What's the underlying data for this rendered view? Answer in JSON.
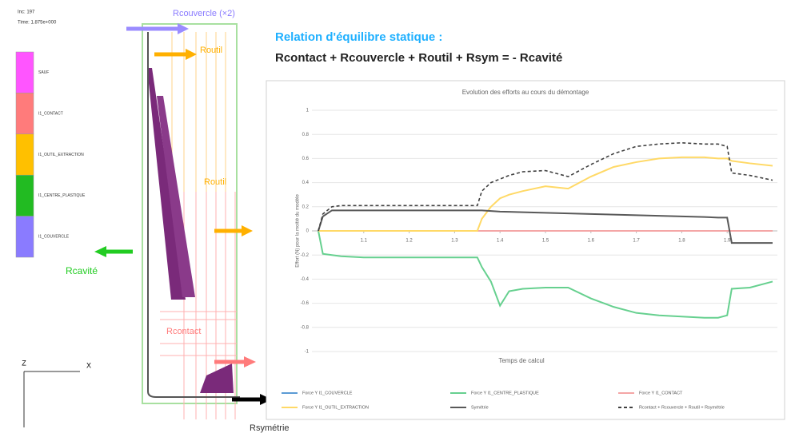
{
  "scene": {
    "info": [
      "Inc: 197",
      "Time: 1.875e+000"
    ],
    "color_legend": [
      {
        "label": "SAUF",
        "color": "#ff55ff"
      },
      {
        "label": "I1_CONTACT",
        "color": "#ff7b7b"
      },
      {
        "label": "I1_OUTIL_EXTRACTION",
        "color": "#ffc000"
      },
      {
        "label": "I1_CENTRE_PLASTIQUE",
        "color": "#22bb22"
      },
      {
        "label": "I1_COUVERCLE",
        "color": "#8a7bff"
      }
    ],
    "labels": {
      "couvercle": "Rcouvercle (×2)",
      "outil_top": "Routil",
      "outil_mid": "Routil",
      "cavite": "Rcavité",
      "contact": "Rcontact",
      "symetrie": "Rsymétrie"
    },
    "axes": {
      "z": "Z",
      "x": "X"
    }
  },
  "equation": {
    "title": "Relation d'équilibre statique :",
    "formula": "Rcontact + Rcouvercle + Routil + Rsym = - Rcavité"
  },
  "chart_data": {
    "type": "line",
    "title": "Evolution des efforts au cours du démontage",
    "xlabel": "Temps de calcul",
    "ylabel": "Effort (N) pour la moitié du modèle",
    "x": [
      1.0,
      1.01,
      1.03,
      1.05,
      1.1,
      1.2,
      1.3,
      1.35,
      1.36,
      1.38,
      1.4,
      1.42,
      1.45,
      1.5,
      1.55,
      1.6,
      1.65,
      1.7,
      1.75,
      1.8,
      1.85,
      1.88,
      1.9,
      1.91,
      1.95,
      2.0
    ],
    "xlim": [
      1,
      2
    ],
    "xticks": [
      1.1,
      1.2,
      1.3,
      1.4,
      1.5,
      1.6,
      1.7,
      1.8,
      1.9
    ],
    "ylim": [
      -1,
      1
    ],
    "yticks": [
      -1,
      -0.8,
      -0.6,
      -0.4,
      -0.2,
      0,
      0.2,
      0.4,
      0.6,
      0.8,
      1
    ],
    "grid": true,
    "legend": "bottom",
    "series": [
      {
        "name": "Force Y I1_COUVERCLE",
        "color": "#5b9bd5",
        "dash": false,
        "values": [
          0,
          0,
          0,
          0,
          0,
          0,
          0,
          0,
          0,
          0,
          0,
          0,
          0,
          0,
          0,
          0,
          0,
          0,
          0,
          0,
          0,
          0,
          0,
          0,
          0,
          0
        ]
      },
      {
        "name": "Force Y I1_CENTRE_PLASTIQUE",
        "color": "#66d08f",
        "dash": false,
        "values": [
          0,
          -0.19,
          -0.2,
          -0.21,
          -0.22,
          -0.22,
          -0.22,
          -0.22,
          -0.3,
          -0.42,
          -0.62,
          -0.5,
          -0.48,
          -0.47,
          -0.47,
          -0.56,
          -0.63,
          -0.68,
          -0.7,
          -0.71,
          -0.72,
          -0.72,
          -0.7,
          -0.48,
          -0.47,
          -0.42
        ]
      },
      {
        "name": "Force Y I1_CONTACT",
        "color": "#f4a6a6",
        "dash": false,
        "values": [
          0,
          0,
          0,
          0,
          0,
          0,
          0,
          0,
          0,
          0,
          0,
          0,
          0,
          0,
          0,
          0,
          0,
          0,
          0,
          0,
          0,
          0,
          0,
          0,
          0,
          0
        ]
      },
      {
        "name": "Force Y I1_OUTIL_EXTRACTION",
        "color": "#ffd966",
        "dash": false,
        "values": [
          0,
          0,
          0,
          0,
          0,
          0,
          0,
          0,
          0.1,
          0.2,
          0.27,
          0.3,
          0.33,
          0.37,
          0.35,
          0.45,
          0.53,
          0.57,
          0.6,
          0.61,
          0.61,
          0.6,
          0.6,
          0.58,
          0.56,
          0.54
        ]
      },
      {
        "name": "Symétrie",
        "color": "#595959",
        "dash": false,
        "values": [
          0,
          0.12,
          0.17,
          0.17,
          0.17,
          0.17,
          0.17,
          0.17,
          0.17,
          0.165,
          0.16,
          0.158,
          0.155,
          0.15,
          0.145,
          0.14,
          0.135,
          0.13,
          0.125,
          0.12,
          0.115,
          0.11,
          0.11,
          -0.1,
          -0.1,
          -0.1
        ]
      },
      {
        "name": "Rcontact + Rcouvercle + Routil + Rsymétrie",
        "color": "#404040",
        "dash": true,
        "values": [
          0,
          0.14,
          0.2,
          0.21,
          0.21,
          0.21,
          0.21,
          0.21,
          0.33,
          0.4,
          0.43,
          0.46,
          0.49,
          0.5,
          0.45,
          0.55,
          0.64,
          0.7,
          0.72,
          0.73,
          0.72,
          0.72,
          0.7,
          0.48,
          0.46,
          0.42
        ]
      }
    ]
  }
}
